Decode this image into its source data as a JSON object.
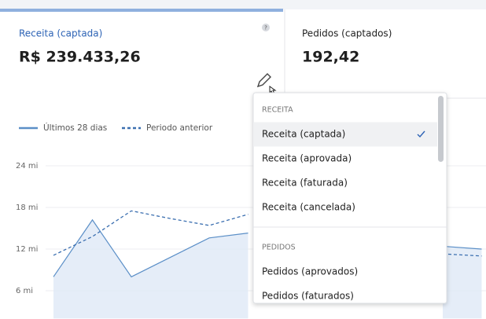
{
  "cards": [
    {
      "label": "Receita (captada)",
      "value": "R$ 239.433,26",
      "help": "?"
    },
    {
      "label": "Pedidos (captados)",
      "value": "192,42"
    }
  ],
  "chart_data": {
    "type": "line",
    "series": [
      {
        "name": "Últimos 28 dias",
        "color": "#5b8fc7",
        "dash": false,
        "values": [
          8.0,
          16.2,
          8.0,
          10.8,
          13.6,
          14.3,
          null,
          null,
          null,
          null,
          12.4,
          12.0
        ]
      },
      {
        "name": "Periodo anterior",
        "color": "#3b6fb0",
        "dash": true,
        "values": [
          11.1,
          13.8,
          17.5,
          16.4,
          15.4,
          17.0,
          null,
          null,
          null,
          null,
          11.3,
          11.0
        ]
      }
    ],
    "ylim": [
      2,
      26
    ],
    "yticks": [
      {
        "value": 24,
        "label": "24 mi"
      },
      {
        "value": 18,
        "label": "18 mi"
      },
      {
        "value": 12,
        "label": "12 mi"
      },
      {
        "value": 6,
        "label": "6 mi"
      }
    ],
    "grid": true
  },
  "dropdown": {
    "groups": [
      {
        "title": "RECEITA",
        "items": [
          "Receita (captada)",
          "Receita (aprovada)",
          "Receita (faturada)",
          "Receita (cancelada)"
        ]
      },
      {
        "title": "PEDIDOS",
        "items": [
          "Pedidos (aprovados)",
          "Pedidos (faturados)"
        ]
      }
    ]
  }
}
